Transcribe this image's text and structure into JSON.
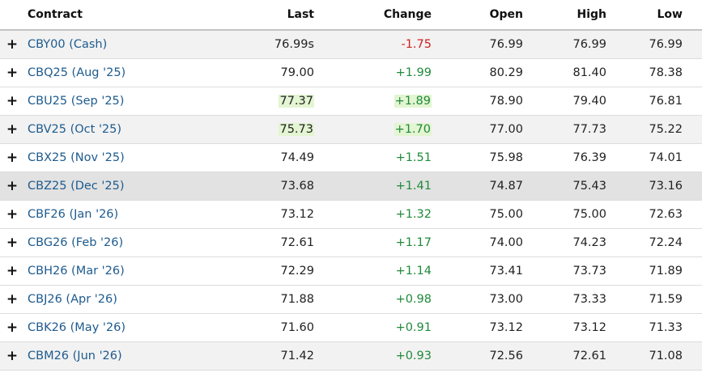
{
  "table": {
    "headers": {
      "contract": "Contract",
      "last": "Last",
      "change": "Change",
      "open": "Open",
      "high": "High",
      "low": "Low"
    },
    "expand_symbol": "+",
    "rows": [
      {
        "contract": "CBY00 (Cash)",
        "last": "76.99s",
        "change": "-1.75",
        "direction": "down",
        "open": "76.99",
        "high": "76.99",
        "low": "76.99",
        "shade": "light",
        "last_flash": false,
        "change_flash": false
      },
      {
        "contract": "CBQ25 (Aug '25)",
        "last": "79.00",
        "change": "+1.99",
        "direction": "up",
        "open": "80.29",
        "high": "81.40",
        "low": "78.38",
        "shade": "none",
        "last_flash": false,
        "change_flash": false
      },
      {
        "contract": "CBU25 (Sep '25)",
        "last": "77.37",
        "change": "+1.89",
        "direction": "up",
        "open": "78.90",
        "high": "79.40",
        "low": "76.81",
        "shade": "none",
        "last_flash": true,
        "change_flash": true
      },
      {
        "contract": "CBV25 (Oct '25)",
        "last": "75.73",
        "change": "+1.70",
        "direction": "up",
        "open": "77.00",
        "high": "77.73",
        "low": "75.22",
        "shade": "light",
        "last_flash": true,
        "change_flash": true
      },
      {
        "contract": "CBX25 (Nov '25)",
        "last": "74.49",
        "change": "+1.51",
        "direction": "up",
        "open": "75.98",
        "high": "76.39",
        "low": "74.01",
        "shade": "none",
        "last_flash": false,
        "change_flash": false
      },
      {
        "contract": "CBZ25 (Dec '25)",
        "last": "73.68",
        "change": "+1.41",
        "direction": "up",
        "open": "74.87",
        "high": "75.43",
        "low": "73.16",
        "shade": "dark",
        "last_flash": false,
        "change_flash": false
      },
      {
        "contract": "CBF26 (Jan '26)",
        "last": "73.12",
        "change": "+1.32",
        "direction": "up",
        "open": "75.00",
        "high": "75.00",
        "low": "72.63",
        "shade": "none",
        "last_flash": false,
        "change_flash": false
      },
      {
        "contract": "CBG26 (Feb '26)",
        "last": "72.61",
        "change": "+1.17",
        "direction": "up",
        "open": "74.00",
        "high": "74.23",
        "low": "72.24",
        "shade": "none",
        "last_flash": false,
        "change_flash": false
      },
      {
        "contract": "CBH26 (Mar '26)",
        "last": "72.29",
        "change": "+1.14",
        "direction": "up",
        "open": "73.41",
        "high": "73.73",
        "low": "71.89",
        "shade": "none",
        "last_flash": false,
        "change_flash": false
      },
      {
        "contract": "CBJ26 (Apr '26)",
        "last": "71.88",
        "change": "+0.98",
        "direction": "up",
        "open": "73.00",
        "high": "73.33",
        "low": "71.59",
        "shade": "none",
        "last_flash": false,
        "change_flash": false
      },
      {
        "contract": "CBK26 (May '26)",
        "last": "71.60",
        "change": "+0.91",
        "direction": "up",
        "open": "73.12",
        "high": "73.12",
        "low": "71.33",
        "shade": "none",
        "last_flash": false,
        "change_flash": false
      },
      {
        "contract": "CBM26 (Jun '26)",
        "last": "71.42",
        "change": "+0.93",
        "direction": "up",
        "open": "72.56",
        "high": "72.61",
        "low": "71.08",
        "shade": "light",
        "last_flash": false,
        "change_flash": false
      }
    ]
  },
  "colors": {
    "link": "#1e5b8e",
    "positive": "#1f8a3a",
    "negative": "#d21f1f",
    "row_shade_light": "#f2f2f2",
    "row_shade_dark": "#e2e2e2",
    "flash_highlight": "#e3f5d2"
  },
  "icons": {
    "expand": "plus-icon"
  }
}
